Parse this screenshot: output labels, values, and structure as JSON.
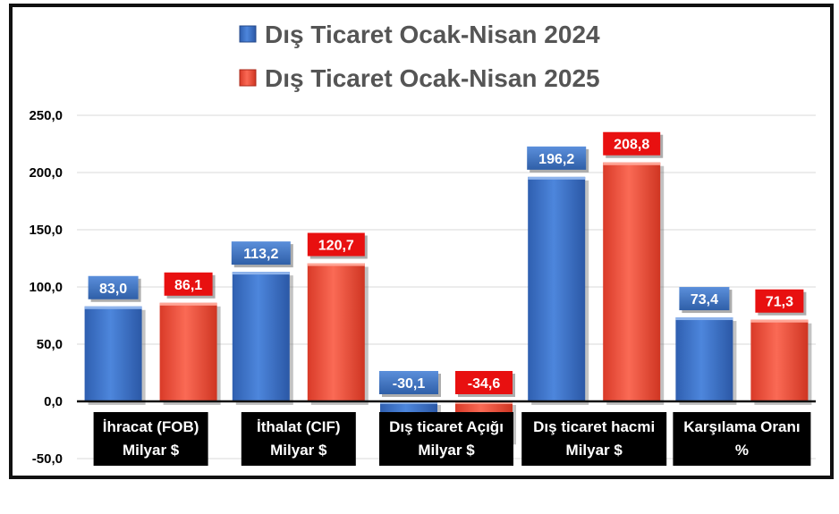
{
  "chart_data": {
    "type": "bar",
    "categories": [
      [
        "İhracat (FOB)",
        "Milyar $"
      ],
      [
        "İthalat (CIF)",
        "Milyar $"
      ],
      [
        "Dış ticaret Açığı",
        "Milyar $"
      ],
      [
        "Dış ticaret hacmi",
        "Milyar $"
      ],
      [
        "Karşılama Oranı",
        "%"
      ]
    ],
    "series": [
      {
        "name": "Dış Ticaret  Ocak-Nisan 2024",
        "color": "#3d72c9",
        "label_bg": "#3d6fb8",
        "values": [
          83.0,
          113.2,
          -30.1,
          196.2,
          73.4
        ],
        "labels": [
          "83,0",
          "113,2",
          "-30,1",
          "196,2",
          "73,4"
        ]
      },
      {
        "name": "Dış Ticaret  Ocak-Nisan 2025",
        "color": "#ee4f3b",
        "label_bg": "#e81010",
        "values": [
          86.1,
          120.7,
          -34.6,
          208.8,
          71.3
        ],
        "labels": [
          "86,1",
          "120,7",
          "-34,6",
          "208,8",
          "71,3"
        ]
      }
    ],
    "ylim": [
      -50,
      250
    ],
    "yticks": [
      -50,
      0,
      50,
      100,
      150,
      200,
      250
    ],
    "ytick_labels": [
      "-50,0",
      "0,0",
      "50,0",
      "100,0",
      "150,0",
      "200,0",
      "250,0"
    ],
    "grid": true,
    "legend_position": "top"
  }
}
